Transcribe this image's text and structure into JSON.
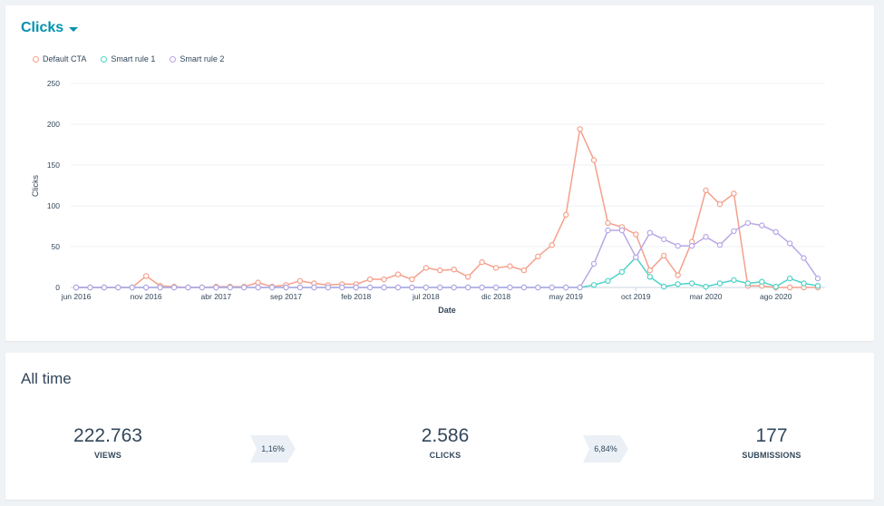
{
  "header": {
    "title": "Clicks"
  },
  "colors": {
    "default_cta": "#f5a08b",
    "smart_rule_1": "#4fd3c8",
    "smart_rule_2": "#b9a7e6",
    "grid": "#eef2f5",
    "accent": "#0091ae"
  },
  "chart_data": {
    "type": "line",
    "xlabel": "Date",
    "ylabel": "Clicks",
    "ylim": [
      0,
      250
    ],
    "yticks": [
      0,
      50,
      100,
      150,
      200,
      250
    ],
    "grid": true,
    "legend_position": "top-left",
    "x_tick_labels": [
      {
        "label": "jun 2016",
        "index": 0
      },
      {
        "label": "nov 2016",
        "index": 5
      },
      {
        "label": "abr 2017",
        "index": 10
      },
      {
        "label": "sep 2017",
        "index": 15
      },
      {
        "label": "feb 2018",
        "index": 20
      },
      {
        "label": "jul 2018",
        "index": 25
      },
      {
        "label": "dic 2018",
        "index": 30
      },
      {
        "label": "may 2019",
        "index": 35
      },
      {
        "label": "oct 2019",
        "index": 40
      },
      {
        "label": "mar 2020",
        "index": 45
      },
      {
        "label": "ago 2020",
        "index": 50
      }
    ],
    "series": [
      {
        "name": "Default CTA",
        "color": "#f5a08b",
        "values": [
          0,
          0,
          0,
          0,
          0,
          14,
          2,
          1,
          0,
          0,
          1,
          1,
          1,
          6,
          1,
          3,
          8,
          5,
          3,
          4,
          4,
          10,
          10,
          16,
          10,
          24,
          21,
          22,
          13,
          31,
          24,
          26,
          21,
          38,
          52,
          89,
          194,
          156,
          79,
          74,
          65,
          21,
          39,
          15,
          56,
          119,
          102,
          115,
          2,
          2,
          0,
          0,
          0,
          0
        ]
      },
      {
        "name": "Smart rule 1",
        "color": "#4fd3c8",
        "values": [
          0,
          0,
          0,
          0,
          0,
          0,
          0,
          0,
          0,
          0,
          0,
          0,
          0,
          0,
          0,
          0,
          0,
          0,
          0,
          0,
          0,
          0,
          0,
          0,
          0,
          0,
          0,
          0,
          0,
          0,
          0,
          0,
          0,
          0,
          0,
          0,
          0,
          3,
          8,
          19,
          37,
          13,
          1,
          4,
          5,
          1,
          5,
          9,
          5,
          7,
          1,
          11,
          5,
          2
        ]
      },
      {
        "name": "Smart rule 2",
        "color": "#b9a7e6",
        "values": [
          0,
          0,
          0,
          0,
          0,
          0,
          0,
          0,
          0,
          0,
          0,
          0,
          0,
          0,
          0,
          0,
          0,
          0,
          0,
          0,
          0,
          0,
          0,
          0,
          0,
          0,
          0,
          0,
          0,
          0,
          0,
          0,
          0,
          0,
          0,
          0,
          0,
          29,
          70,
          70,
          37,
          67,
          59,
          51,
          51,
          62,
          52,
          69,
          79,
          76,
          68,
          54,
          36,
          11
        ]
      }
    ]
  },
  "stats": {
    "title": "All time",
    "views_value": "222.763",
    "views_label": "VIEWS",
    "rate_1": "1,16%",
    "clicks_value": "2.586",
    "clicks_label": "CLICKS",
    "rate_2": "6,84%",
    "submissions_value": "177",
    "submissions_label": "SUBMISSIONS"
  }
}
